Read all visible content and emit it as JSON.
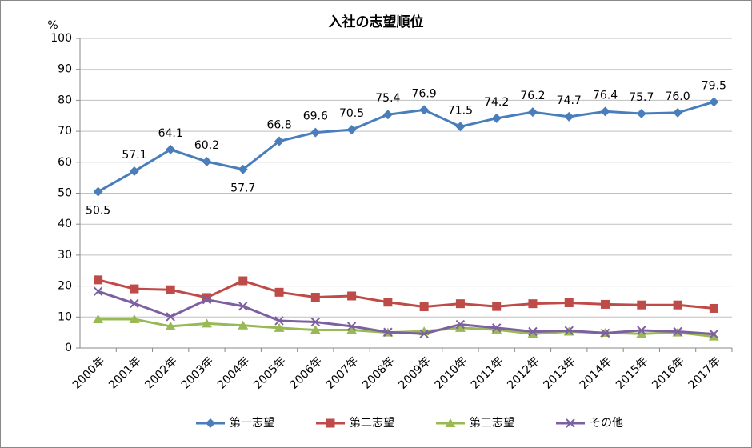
{
  "chart_data": {
    "type": "line",
    "title": "入社の志望順位",
    "y_unit": "%",
    "categories": [
      "2000年",
      "2001年",
      "2002年",
      "2003年",
      "2004年",
      "2005年",
      "2006年",
      "2007年",
      "2008年",
      "2009年",
      "2010年",
      "2011年",
      "2012年",
      "2013年",
      "2014年",
      "2015年",
      "2016年",
      "2017年"
    ],
    "ylim": [
      0,
      100
    ],
    "yticks": [
      0,
      10,
      20,
      30,
      40,
      50,
      60,
      70,
      80,
      90,
      100
    ],
    "grid": true,
    "legend": "bottom",
    "series": [
      {
        "name": "第一志望",
        "color": "#4a7ebb",
        "marker": "diamond",
        "values": [
          50.5,
          57.1,
          64.1,
          60.2,
          57.7,
          66.8,
          69.6,
          70.5,
          75.4,
          76.9,
          71.5,
          74.2,
          76.2,
          74.7,
          76.4,
          75.7,
          76.0,
          79.5
        ],
        "value_labels": [
          "50.5",
          "57.1",
          "64.1",
          "60.2",
          "57.7",
          "66.8",
          "69.6",
          "70.5",
          "75.4",
          "76.9",
          "71.5",
          "74.2",
          "76.2",
          "74.7",
          "76.4",
          "75.7",
          "76.0",
          "79.5"
        ]
      },
      {
        "name": "第二志望",
        "color": "#be4b48",
        "marker": "square",
        "values": [
          22.0,
          19.1,
          18.8,
          16.3,
          21.7,
          18.0,
          16.4,
          16.8,
          14.8,
          13.3,
          14.3,
          13.4,
          14.3,
          14.6,
          14.1,
          13.9,
          13.9,
          12.8
        ]
      },
      {
        "name": "第三志望",
        "color": "#98b954",
        "marker": "triangle",
        "values": [
          9.3,
          9.3,
          7.0,
          7.9,
          7.3,
          6.5,
          5.8,
          5.8,
          5.0,
          5.4,
          6.5,
          5.9,
          4.6,
          5.3,
          4.9,
          4.6,
          5.0,
          3.7
        ]
      },
      {
        "name": "その他",
        "color": "#7d60a0",
        "marker": "x",
        "values": [
          18.3,
          14.4,
          10.1,
          15.6,
          13.5,
          8.8,
          8.4,
          7.0,
          5.1,
          4.6,
          7.6,
          6.5,
          5.3,
          5.6,
          4.8,
          5.7,
          5.3,
          4.5
        ]
      }
    ]
  }
}
